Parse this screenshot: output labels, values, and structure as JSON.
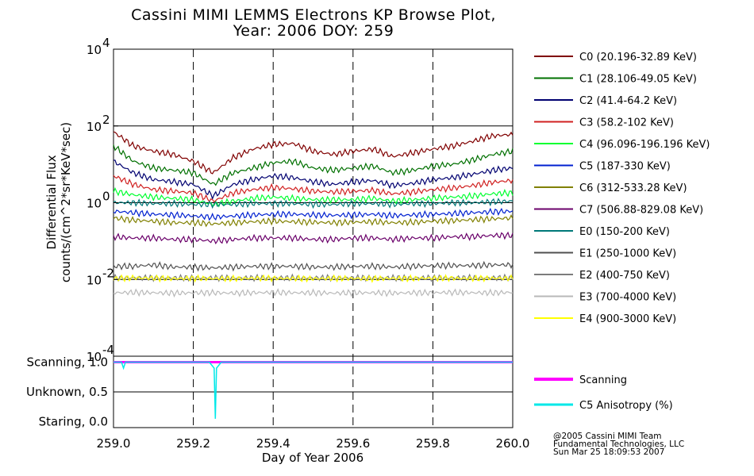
{
  "title": {
    "line1": "Cassini MIMI LEMMS Electrons KP Browse Plot,",
    "line2": "Year: 2006 DOY: 259"
  },
  "credit": {
    "line1": "@2005 Cassini MIMI Team",
    "line2": "Fundamental Technologies, LLC",
    "line3": "Sun Mar 25 18:09:53 2007"
  },
  "colors": {
    "grid": "#000000",
    "background": "#ffffff"
  },
  "chart_data": [
    {
      "type": "line",
      "panel": "flux",
      "ylabel_line1": "Differential Flux",
      "ylabel_line2": "counts/(cm^2*sr*KeV*sec)",
      "yscale": "log",
      "ylim": [
        0.0001,
        10000
      ],
      "y_ticks": [
        {
          "label": "10",
          "exp": "4",
          "value": 10000
        },
        {
          "label": "10",
          "exp": "2",
          "value": 100
        },
        {
          "label": "10",
          "exp": "0",
          "value": 1
        },
        {
          "label": "10",
          "exp": "-2",
          "value": 0.01
        },
        {
          "label": "10",
          "exp": "-4",
          "value": 0.0001
        }
      ],
      "xlim": [
        259.0,
        260.0
      ],
      "grid": "horizontal solid at decades, vertical dashed every 0.2 day",
      "series": [
        {
          "name": "C0 (20.196-32.89 KeV)",
          "color": "#800000",
          "x": [
            259.0,
            259.05,
            259.1,
            259.15,
            259.2,
            259.25,
            259.3,
            259.35,
            259.4,
            259.45,
            259.5,
            259.55,
            259.6,
            259.65,
            259.7,
            259.75,
            259.8,
            259.85,
            259.9,
            259.95,
            260.0
          ],
          "values": [
            70,
            30,
            22,
            18,
            12,
            6,
            15,
            25,
            33,
            35,
            22,
            18,
            22,
            25,
            16,
            20,
            25,
            30,
            40,
            55,
            60
          ]
        },
        {
          "name": "C1 (28.106-49.05 KeV)",
          "color": "#007000",
          "x": [
            259.0,
            259.05,
            259.1,
            259.15,
            259.2,
            259.25,
            259.3,
            259.35,
            259.4,
            259.45,
            259.5,
            259.55,
            259.6,
            259.65,
            259.7,
            259.75,
            259.8,
            259.85,
            259.9,
            259.95,
            260.0
          ],
          "values": [
            30,
            12,
            8,
            7,
            6,
            3,
            6,
            8,
            11,
            12,
            8,
            7,
            8,
            9,
            6,
            7,
            9,
            10,
            13,
            18,
            22
          ]
        },
        {
          "name": "C2 (41.4-64.2 KeV)",
          "color": "#000070",
          "x": [
            259.0,
            259.05,
            259.1,
            259.15,
            259.2,
            259.25,
            259.3,
            259.35,
            259.4,
            259.45,
            259.5,
            259.55,
            259.6,
            259.65,
            259.7,
            259.75,
            259.8,
            259.85,
            259.9,
            259.95,
            260.0
          ],
          "values": [
            12,
            6,
            4,
            3.5,
            3,
            1.5,
            3,
            4,
            5,
            4.5,
            3.5,
            3,
            3.5,
            3.8,
            2.8,
            3.2,
            4,
            4.5,
            5.5,
            7,
            8
          ]
        },
        {
          "name": "C3 (58.2-102 KeV)",
          "color": "#d02020",
          "x": [
            259.0,
            259.05,
            259.1,
            259.15,
            259.2,
            259.25,
            259.3,
            259.35,
            259.4,
            259.45,
            259.5,
            259.55,
            259.6,
            259.65,
            259.7,
            259.75,
            259.8,
            259.85,
            259.9,
            259.95,
            260.0
          ],
          "values": [
            5,
            3,
            2.2,
            2,
            1.8,
            1.1,
            1.8,
            2.2,
            2.5,
            2.3,
            2,
            1.9,
            2,
            2.1,
            1.7,
            1.9,
            2.2,
            2.4,
            2.8,
            3.4,
            3.8
          ]
        },
        {
          "name": "C4 (96.096-196.196 KeV)",
          "color": "#00ff30",
          "x": [
            259.0,
            259.05,
            259.1,
            259.15,
            259.2,
            259.25,
            259.3,
            259.35,
            259.4,
            259.45,
            259.5,
            259.55,
            259.6,
            259.65,
            259.7,
            259.75,
            259.8,
            259.85,
            259.9,
            259.95,
            260.0
          ],
          "values": [
            2,
            1.6,
            1.4,
            1.3,
            1.2,
            0.9,
            1.1,
            1.3,
            1.4,
            1.3,
            1.2,
            1.2,
            1.2,
            1.3,
            1.1,
            1.2,
            1.3,
            1.4,
            1.5,
            1.7,
            1.8
          ]
        },
        {
          "name": "C5 (187-330 KeV)",
          "color": "#0020d0",
          "x": [
            259.0,
            259.05,
            259.1,
            259.15,
            259.2,
            259.25,
            259.3,
            259.35,
            259.4,
            259.45,
            259.5,
            259.55,
            259.6,
            259.65,
            259.7,
            259.75,
            259.8,
            259.85,
            259.9,
            259.95,
            260.0
          ],
          "values": [
            0.6,
            0.55,
            0.5,
            0.48,
            0.45,
            0.42,
            0.45,
            0.48,
            0.5,
            0.5,
            0.48,
            0.47,
            0.48,
            0.5,
            0.46,
            0.48,
            0.5,
            0.52,
            0.55,
            0.58,
            0.6
          ]
        },
        {
          "name": "C6 (312-533.28 KeV)",
          "color": "#808000",
          "x": [
            259.0,
            259.05,
            259.1,
            259.15,
            259.2,
            259.25,
            259.3,
            259.35,
            259.4,
            259.45,
            259.5,
            259.55,
            259.6,
            259.65,
            259.7,
            259.75,
            259.8,
            259.85,
            259.9,
            259.95,
            260.0
          ],
          "values": [
            0.4,
            0.35,
            0.33,
            0.3,
            0.3,
            0.28,
            0.3,
            0.32,
            0.33,
            0.32,
            0.31,
            0.3,
            0.31,
            0.32,
            0.3,
            0.31,
            0.33,
            0.34,
            0.36,
            0.38,
            0.4
          ]
        },
        {
          "name": "C7 (506.88-829.08 KeV)",
          "color": "#6a006a",
          "x": [
            259.0,
            259.05,
            259.1,
            259.15,
            259.2,
            259.25,
            259.3,
            259.35,
            259.4,
            259.45,
            259.5,
            259.55,
            259.6,
            259.65,
            259.7,
            259.75,
            259.8,
            259.85,
            259.9,
            259.95,
            260.0
          ],
          "values": [
            0.13,
            0.12,
            0.12,
            0.11,
            0.11,
            0.1,
            0.11,
            0.12,
            0.12,
            0.12,
            0.11,
            0.11,
            0.12,
            0.12,
            0.11,
            0.12,
            0.12,
            0.13,
            0.13,
            0.14,
            0.14
          ]
        },
        {
          "name": "E0 (150-200 KeV)",
          "color": "#007878",
          "x": [
            259.0,
            259.05,
            259.1,
            259.15,
            259.2,
            259.25,
            259.3,
            259.35,
            259.4,
            259.45,
            259.5,
            259.55,
            259.6,
            259.65,
            259.7,
            259.75,
            259.8,
            259.85,
            259.9,
            259.95,
            260.0
          ],
          "values": [
            1.0,
            1.0,
            0.95,
            0.95,
            0.9,
            0.9,
            0.9,
            0.95,
            0.95,
            0.95,
            0.9,
            0.9,
            0.95,
            0.95,
            0.9,
            0.95,
            0.95,
            1.0,
            1.0,
            1.05,
            1.1
          ]
        },
        {
          "name": "E1 (250-1000 KeV)",
          "color": "#505050",
          "x": [
            259.0,
            259.05,
            259.1,
            259.15,
            259.2,
            259.25,
            259.3,
            259.35,
            259.4,
            259.45,
            259.5,
            259.55,
            259.6,
            259.65,
            259.7,
            259.75,
            259.8,
            259.85,
            259.9,
            259.95,
            260.0
          ],
          "values": [
            0.022,
            0.022,
            0.024,
            0.021,
            0.021,
            0.02,
            0.021,
            0.022,
            0.022,
            0.022,
            0.021,
            0.021,
            0.022,
            0.022,
            0.021,
            0.022,
            0.023,
            0.023,
            0.023,
            0.024,
            0.024
          ]
        },
        {
          "name": "E2 (400-750 KeV)",
          "color": "#7c7c7c",
          "x": [
            259.0,
            259.5,
            260.0
          ],
          "values": [
            0.011,
            0.011,
            0.011
          ]
        },
        {
          "name": "E3 (700-4000 KeV)",
          "color": "#b8b8b8",
          "x": [
            259.0,
            259.05,
            259.1,
            259.15,
            259.2,
            259.25,
            259.3,
            259.35,
            259.4,
            259.45,
            259.5,
            259.55,
            259.6,
            259.65,
            259.7,
            259.75,
            259.8,
            259.85,
            259.9,
            259.95,
            260.0
          ],
          "values": [
            0.0045,
            0.0046,
            0.0045,
            0.0044,
            0.0045,
            0.0045,
            0.0044,
            0.0045,
            0.0046,
            0.0045,
            0.0045,
            0.0044,
            0.0045,
            0.0045,
            0.0044,
            0.0045,
            0.0045,
            0.0046,
            0.0045,
            0.0045,
            0.0046
          ]
        },
        {
          "name": "E4 (900-3000 KeV)",
          "color": "#ffff00",
          "x": [
            259.0,
            259.05,
            259.1,
            259.15,
            259.2,
            259.25,
            259.3,
            259.35,
            259.4,
            259.45,
            259.5,
            259.55,
            259.6,
            259.65,
            259.7,
            259.75,
            259.8,
            259.85,
            259.9,
            259.95,
            260.0
          ],
          "values": [
            0.0105,
            0.011,
            0.0108,
            0.0105,
            0.0107,
            0.0106,
            0.0105,
            0.0108,
            0.0107,
            0.0106,
            0.0105,
            0.0107,
            0.0106,
            0.0105,
            0.0107,
            0.0106,
            0.0108,
            0.0107,
            0.0106,
            0.0108,
            0.0107
          ]
        }
      ]
    },
    {
      "type": "line",
      "panel": "scan",
      "xlabel": "Day of Year 2006",
      "xlim": [
        259.0,
        260.0
      ],
      "x_ticks": [
        "259.0",
        "259.2",
        "259.4",
        "259.6",
        "259.8",
        "260.0"
      ],
      "x_tick_values": [
        259.0,
        259.2,
        259.4,
        259.6,
        259.8,
        260.0
      ],
      "ylim": [
        -0.1,
        1.1
      ],
      "y_ticks": [
        {
          "label": "Scanning, 1.0",
          "value": 1.0
        },
        {
          "label": "Unknown, 0.5",
          "value": 0.5
        },
        {
          "label": "Staring, 0.0",
          "value": 0.0
        }
      ],
      "series": [
        {
          "name": "Scanning",
          "color": "#ff00ff",
          "x": [
            259.0,
            260.0
          ],
          "values": [
            1.0,
            1.0
          ]
        },
        {
          "name": "C5 Anisotropy (%)",
          "color": "#00e8e8",
          "x": [
            259.0,
            259.02,
            259.025,
            259.03,
            259.24,
            259.252,
            259.255,
            259.258,
            259.27,
            260.0
          ],
          "values": [
            1.0,
            1.0,
            0.9,
            1.0,
            1.0,
            0.9,
            0.05,
            0.9,
            1.0,
            1.0
          ]
        }
      ]
    }
  ]
}
